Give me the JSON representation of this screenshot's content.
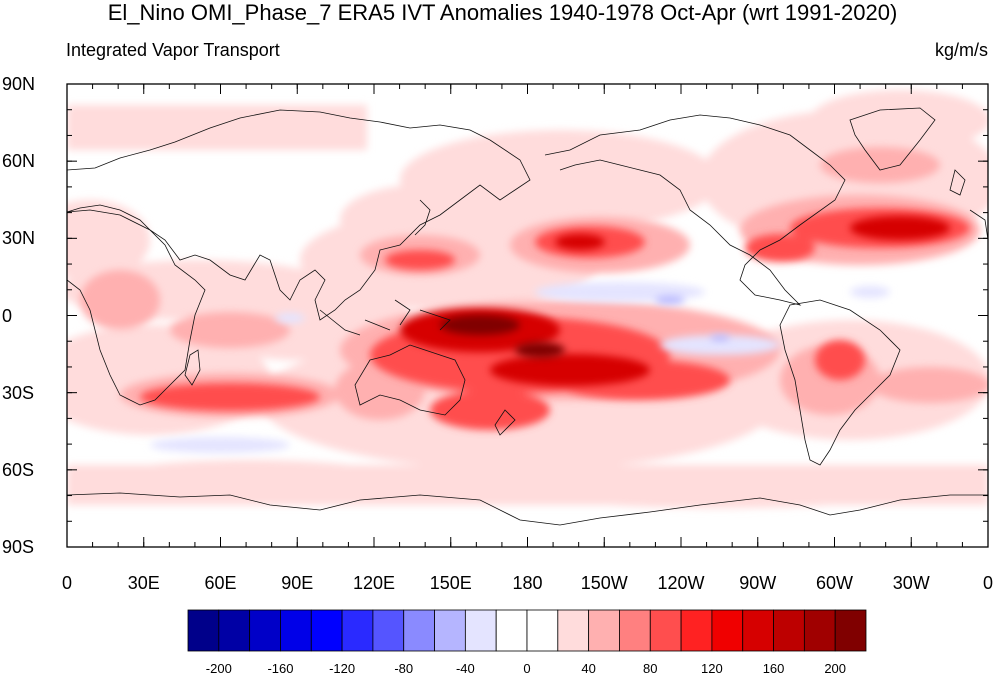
{
  "title": "El_Nino OMI_Phase_7 ERA5 IVT Anomalies 1940-1978 Oct-Apr (wrt 1991-2020)",
  "subtitle_left": "Integrated Vapor Transport",
  "units": "kg/m/s",
  "lat_labels": [
    "90N",
    "60N",
    "30N",
    "0",
    "30S",
    "60S",
    "90S"
  ],
  "lon_labels": [
    "0",
    "30E",
    "60E",
    "90E",
    "120E",
    "150E",
    "180",
    "150W",
    "120W",
    "90W",
    "60W",
    "30W",
    "0"
  ],
  "colorbar": {
    "colors": [
      "#00008a",
      "#0000a5",
      "#0000c8",
      "#0000e8",
      "#0000ff",
      "#2a2aff",
      "#5555ff",
      "#8a8aff",
      "#b5b5ff",
      "#e4e4ff",
      "#ffffff",
      "#ffffff",
      "#ffdcdc",
      "#ffb0b0",
      "#ff8080",
      "#ff4e4e",
      "#ff2222",
      "#f00000",
      "#d60000",
      "#bd0000",
      "#a00000",
      "#800000"
    ],
    "labels": [
      "-200",
      "-160",
      "-120",
      "-80",
      "-40",
      "0",
      "40",
      "80",
      "120",
      "160",
      "200"
    ]
  },
  "map_data": {
    "lat_range": [
      -90,
      90
    ],
    "lon_range": [
      0,
      360
    ],
    "field": "IVT anomaly"
  }
}
